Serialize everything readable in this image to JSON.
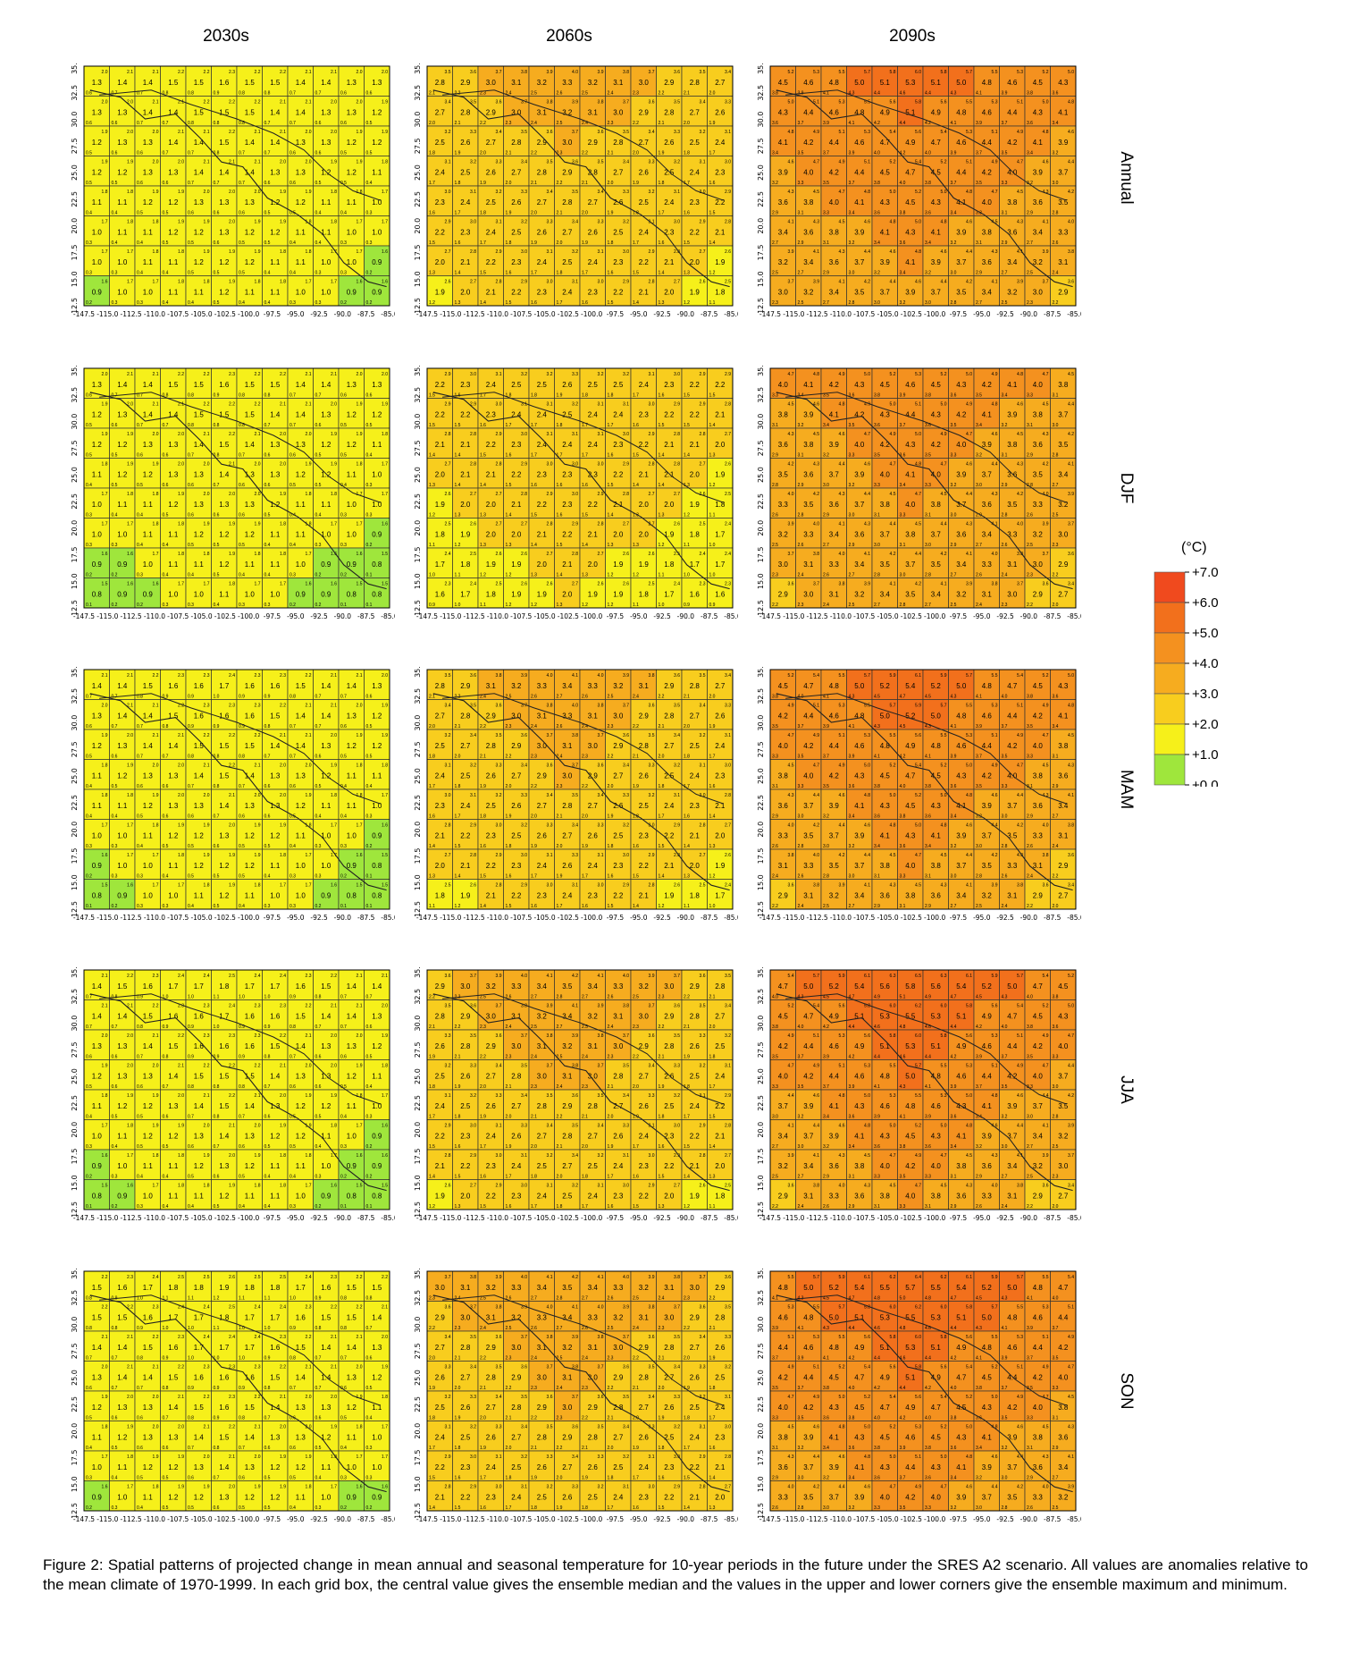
{
  "columns": [
    "2030s",
    "2060s",
    "2090s"
  ],
  "rows": [
    "Annual",
    "DJF",
    "MAM",
    "JJA",
    "SON"
  ],
  "x_ticks": [
    "-147.5",
    "-115.0",
    "-112.5",
    "-110.0",
    "-107.5",
    "-105.0",
    "-102.5",
    "-100.0",
    "-97.5",
    "-95.0",
    "-92.5",
    "-90.0",
    "-87.5",
    "-85.0"
  ],
  "y_ticks": [
    "12.5",
    "15.0",
    "17.5",
    "20.0",
    "22.5",
    "25.0",
    "27.5",
    "30.0",
    "32.5",
    "35.0"
  ],
  "legend": {
    "unit": "(°C)",
    "labels": [
      "+7.0",
      "+6.0",
      "+5.0",
      "+4.0",
      "+3.0",
      "+2.0",
      "+1.0",
      "+0.0"
    ],
    "colors": [
      "#f04a1e",
      "#f2701c",
      "#f4911f",
      "#f6ac1f",
      "#f8cd1e",
      "#f6f01a",
      "#9fe63c"
    ]
  },
  "caption": "Figure 2: Spatial patterns of projected change in mean annual and seasonal temperature for 10-year periods in the future under the SRES A2 scenario. All values are anomalies relative to the mean climate of 1970-1999. In each grid box, the central value gives the ensemble median and the values in the upper and lower corners give the ensemble maximum and minimum.",
  "chart_data": {
    "type": "heatmap",
    "grid": "12 columns x 8 rows of grid boxes per panel, lon -115.0 to -85.0, lat 12.5 to 35.0",
    "panels": [
      {
        "row": "Annual",
        "column": "2030s",
        "median_range": [
          0.8,
          1.6
        ]
      },
      {
        "row": "Annual",
        "column": "2060s",
        "median_range": [
          1.7,
          3.3
        ]
      },
      {
        "row": "Annual",
        "column": "2090s",
        "median_range": [
          2.7,
          5.3
        ]
      },
      {
        "row": "DJF",
        "column": "2030s",
        "median_range": [
          0.7,
          1.6
        ]
      },
      {
        "row": "DJF",
        "column": "2060s",
        "median_range": [
          1.5,
          2.6
        ]
      },
      {
        "row": "DJF",
        "column": "2090s",
        "median_range": [
          2.6,
          4.6
        ]
      },
      {
        "row": "MAM",
        "column": "2030s",
        "median_range": [
          0.7,
          1.7
        ]
      },
      {
        "row": "MAM",
        "column": "2060s",
        "median_range": [
          1.6,
          3.4
        ]
      },
      {
        "row": "MAM",
        "column": "2090s",
        "median_range": [
          2.5,
          5.4
        ]
      },
      {
        "row": "JJA",
        "column": "2030s",
        "median_range": [
          0.7,
          1.8
        ]
      },
      {
        "row": "JJA",
        "column": "2060s",
        "median_range": [
          1.7,
          3.5
        ]
      },
      {
        "row": "JJA",
        "column": "2090s",
        "median_range": [
          2.5,
          5.8
        ]
      },
      {
        "row": "SON",
        "column": "2030s",
        "median_range": [
          0.8,
          1.9
        ]
      },
      {
        "row": "SON",
        "column": "2060s",
        "median_range": [
          1.9,
          3.5
        ]
      },
      {
        "row": "SON",
        "column": "2090s",
        "median_range": [
          3.0,
          5.7
        ]
      }
    ],
    "scale": {
      "min": 0.0,
      "max": 7.0,
      "step": 1.0
    }
  }
}
